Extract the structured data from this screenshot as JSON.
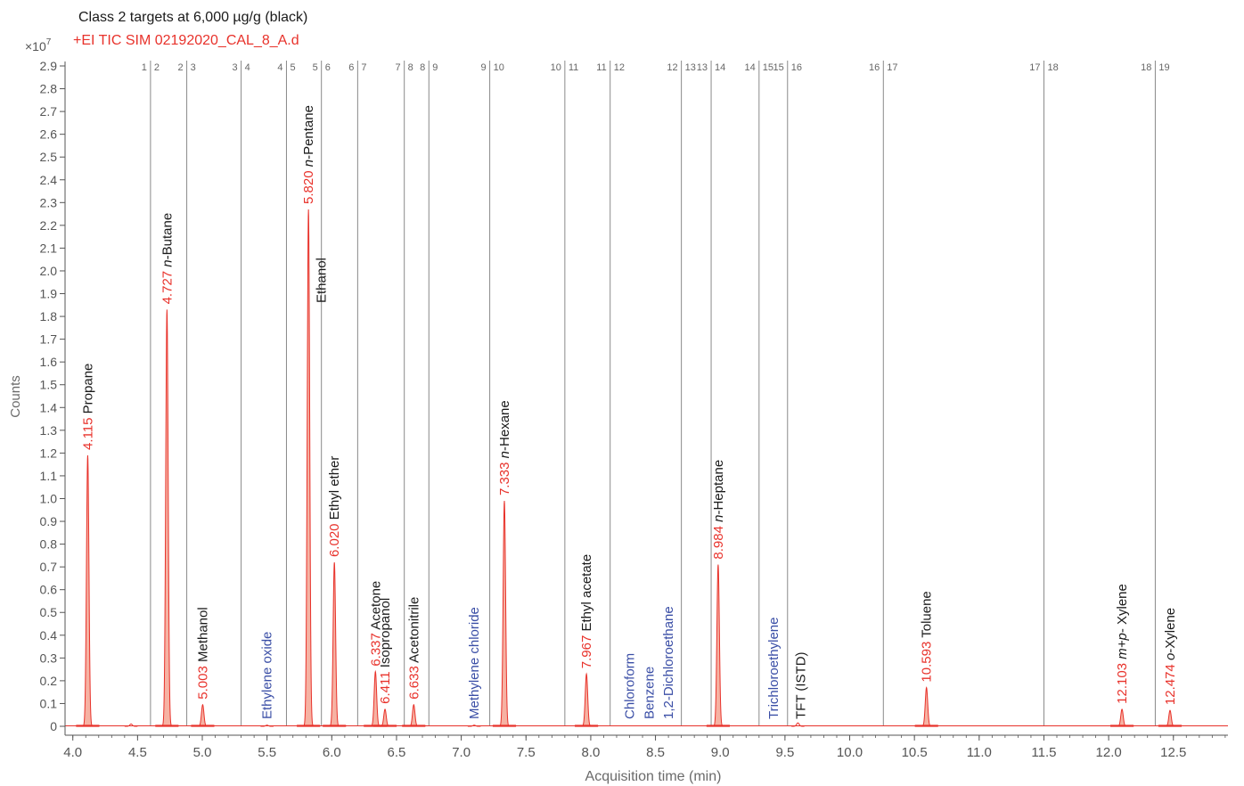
{
  "header": {
    "line1": "Class 2 targets at 6,000 µg/g (black)",
    "line2": "+EI TIC SIM 02192020_CAL_8_A.d"
  },
  "colors": {
    "trace": "#e8322b",
    "fill": "#f6b2a3",
    "label_black": "#1a1a1a",
    "label_blue": "#3a4ea6",
    "segment_line": "#8a8a8a",
    "axis": "#555555"
  },
  "chart_data": {
    "type": "line",
    "title": "",
    "xlabel": "Acquisition time (min)",
    "ylabel": "Counts",
    "y_multiplier": "×10",
    "y_multiplier_exp": "7",
    "xlim": [
      3.94,
      12.93
    ],
    "ylim": [
      0,
      2.9
    ],
    "xticks": [
      "4.0",
      "4.5",
      "5.0",
      "5.5",
      "6.0",
      "6.5",
      "7.0",
      "7.5",
      "8.0",
      "8.5",
      "9.0",
      "9.5",
      "10.0",
      "10.5",
      "11.0",
      "11.5",
      "12.0",
      "12.5"
    ],
    "yticks": [
      "0",
      "0.1",
      "0.2",
      "0.3",
      "0.4",
      "0.5",
      "0.6",
      "0.7",
      "0.8",
      "0.9",
      "1.0",
      "1.1",
      "1.2",
      "1.3",
      "1.4",
      "1.5",
      "1.6",
      "1.7",
      "1.8",
      "1.9",
      "2.0",
      "2.1",
      "2.2",
      "2.3",
      "2.4",
      "2.5",
      "2.6",
      "2.7",
      "2.8",
      "2.9"
    ],
    "segments": [
      {
        "x": 4.6,
        "left": "1",
        "right": "2"
      },
      {
        "x": 4.88,
        "left": "2",
        "right": "3"
      },
      {
        "x": 5.3,
        "left": "3",
        "right": "4"
      },
      {
        "x": 5.65,
        "left": "4",
        "right": "5"
      },
      {
        "x": 5.92,
        "left": "5",
        "right": "6"
      },
      {
        "x": 6.2,
        "left": "6",
        "right": "7"
      },
      {
        "x": 6.56,
        "left": "7",
        "right": "8"
      },
      {
        "x": 6.75,
        "left": "8",
        "right": "9"
      },
      {
        "x": 7.22,
        "left": "9",
        "right": "10"
      },
      {
        "x": 7.8,
        "left": "10",
        "right": "11"
      },
      {
        "x": 8.15,
        "left": "11",
        "right": "12"
      },
      {
        "x": 8.7,
        "left": "12",
        "right": "13"
      },
      {
        "x": 8.93,
        "left": "13",
        "right": "14"
      },
      {
        "x": 9.3,
        "left": "14",
        "right": "15"
      },
      {
        "x": 9.52,
        "left": "15",
        "right": "16"
      },
      {
        "x": 10.26,
        "left": "16",
        "right": "17"
      },
      {
        "x": 11.5,
        "left": "17",
        "right": "18"
      },
      {
        "x": 12.36,
        "left": "18",
        "right": "19"
      }
    ],
    "peaks": [
      {
        "rt": 4.115,
        "height": 1.19,
        "rt_label": "4.115",
        "name": "Propane",
        "color": "black"
      },
      {
        "rt": 4.727,
        "height": 1.83,
        "rt_label": "4.727",
        "name": "n-Butane",
        "prefix": "n",
        "suffix": "-Butane",
        "color": "black"
      },
      {
        "rt": 5.003,
        "height": 0.095,
        "rt_label": "5.003",
        "name": "Methanol",
        "color": "black"
      },
      {
        "rt": 5.82,
        "height": 2.27,
        "rt_label": "5.820",
        "name": "n-Pentane",
        "prefix": "n",
        "suffix": "-Pentane",
        "color": "black"
      },
      {
        "rt": 6.02,
        "height": 0.72,
        "rt_label": "6.020",
        "name": "Ethyl ether",
        "color": "black"
      },
      {
        "rt": 6.337,
        "height": 0.24,
        "rt_label": "6.337",
        "name": "Acetone",
        "color": "black"
      },
      {
        "rt": 6.411,
        "height": 0.075,
        "rt_label": "6.411",
        "name": "Isopropanol",
        "color": "black"
      },
      {
        "rt": 6.633,
        "height": 0.095,
        "rt_label": "6.633",
        "name": "Acetonitrile",
        "color": "black"
      },
      {
        "rt": 7.333,
        "height": 0.99,
        "rt_label": "7.333",
        "name": "n-Hexane",
        "prefix": "n",
        "suffix": "-Hexane",
        "color": "black"
      },
      {
        "rt": 7.967,
        "height": 0.23,
        "rt_label": "7.967",
        "name": "Ethyl acetate",
        "color": "black"
      },
      {
        "rt": 8.984,
        "height": 0.71,
        "rt_label": "8.984",
        "name": "n-Heptane",
        "prefix": "n",
        "suffix": "-Heptane",
        "color": "black"
      },
      {
        "rt": 10.593,
        "height": 0.17,
        "rt_label": "10.593",
        "name": "Toluene",
        "color": "black"
      },
      {
        "rt": 12.103,
        "height": 0.075,
        "rt_label": "12.103",
        "name": "m+p- Xylene",
        "prefix": "m+p",
        "suffix": "- Xylene",
        "color": "black"
      },
      {
        "rt": 12.474,
        "height": 0.07,
        "rt_label": "12.474",
        "name": "o-Xylene",
        "prefix": "o",
        "suffix": "-Xylene",
        "color": "black"
      }
    ],
    "minor_peaks": [
      {
        "rt": 4.45,
        "height": 0.01
      },
      {
        "rt": 5.5,
        "height": 0.005
      },
      {
        "rt": 7.1,
        "height": 0.005
      },
      {
        "rt": 9.6,
        "height": 0.015
      }
    ],
    "name_only_labels": [
      {
        "x": 5.5,
        "name": "Ethylene oxide",
        "color": "blue"
      },
      {
        "x": 5.92,
        "name": "Ethanol",
        "color": "black"
      },
      {
        "x": 7.1,
        "name": "Methylene chloride",
        "color": "blue"
      },
      {
        "x": 8.3,
        "name": "Chloroform",
        "color": "blue"
      },
      {
        "x": 8.45,
        "name": "Benzene",
        "color": "blue"
      },
      {
        "x": 8.6,
        "name": "1,2-Dichloroethane",
        "color": "blue"
      },
      {
        "x": 9.41,
        "name": "Trichloroethylene",
        "color": "blue"
      },
      {
        "x": 9.62,
        "name": "TFT (ISTD)",
        "color": "black"
      }
    ]
  }
}
